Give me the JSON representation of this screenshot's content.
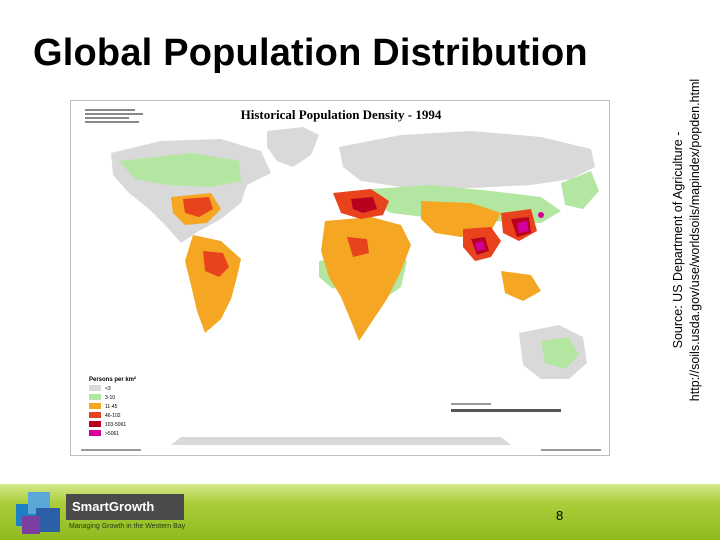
{
  "slide": {
    "title": "Global Population Distribution",
    "page_number": "8"
  },
  "source": {
    "line1": "Source: US Department of Agriculture -",
    "line2": "http://soils.usda.gov/use/worldsoils/mapindex/popden.html"
  },
  "map": {
    "title": "Historical Population Density - 1994",
    "legend": {
      "classes": [
        {
          "label": "<3",
          "color": "#d9d9d9"
        },
        {
          "label": "3-10",
          "color": "#b3e6a0"
        },
        {
          "label": "11-45",
          "color": "#f5a623"
        },
        {
          "label": "46-102",
          "color": "#e8431c"
        },
        {
          "label": "103-5061",
          "color": "#b8001f"
        },
        {
          "label": ">5061",
          "color": "#d4009b"
        }
      ]
    }
  },
  "brand": {
    "name_smart": "Smart",
    "name_growth": "Growth",
    "tagline": "Managing Growth in the Western Bay"
  },
  "colors": {
    "ocean": "#ffffff",
    "land_sparse": "#d9d9d9",
    "low": "#b3e6a0",
    "medium": "#f5a623",
    "high": "#e8431c",
    "very_high": "#b8001f",
    "extreme": "#d4009b",
    "footer_green": "#a9cd3a"
  }
}
